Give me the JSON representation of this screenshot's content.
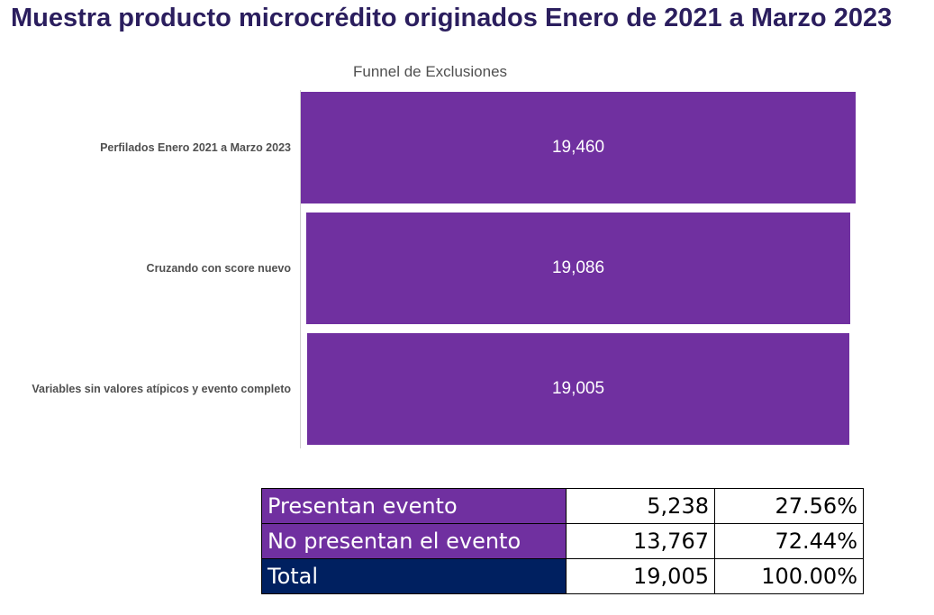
{
  "page_title": "Muestra producto microcrédito originados Enero de 2021 a Marzo 2023",
  "chart_data": {
    "type": "bar",
    "subtype": "funnel",
    "orientation": "horizontal",
    "title": "Funnel de Exclusiones",
    "categories": [
      "Perfilados Enero 2021 a Marzo 2023",
      "Cruzando con score nuevo",
      "Variables sin valores atípicos y evento completo"
    ],
    "values": [
      19460,
      19086,
      19005
    ],
    "value_labels": [
      "19,460",
      "19,086",
      "19,005"
    ],
    "colors": {
      "bar": "#7030a0",
      "label_text": "#ffffff"
    },
    "legend": "none",
    "grid": false
  },
  "summary_table": {
    "colors": {
      "row_fill": "#7030a0",
      "total_fill": "#002060"
    },
    "rows": [
      {
        "label": "Presentan evento",
        "count": "5,238",
        "percent": "27.56%"
      },
      {
        "label": "No presentan el evento",
        "count": "13,767",
        "percent": "72.44%"
      },
      {
        "label": "Total",
        "count": "19,005",
        "percent": "100.00%"
      }
    ]
  }
}
